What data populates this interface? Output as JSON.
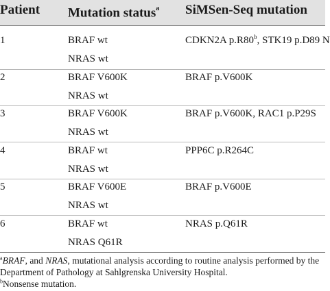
{
  "header": {
    "patient": "Patient",
    "mutation_status": "Mutation status",
    "mutation_status_note": "a",
    "simsen": "SiMSen-Seq mutation"
  },
  "rows": [
    {
      "patient": "1",
      "status1": "BRAF wt",
      "status2": "NRAS wt",
      "simsen_a": "CDKN2A p.R80",
      "simsen_sup": "b",
      "simsen_b": ", STK19 p.D89 N"
    },
    {
      "patient": "2",
      "status1": "BRAF V600K",
      "status2": "NRAS wt",
      "simsen": "BRAF p.V600K"
    },
    {
      "patient": "3",
      "status1": "BRAF V600K",
      "status2": "NRAS wt",
      "simsen": "BRAF p.V600K, RAC1 p.P29S"
    },
    {
      "patient": "4",
      "status1": "BRAF wt",
      "status2": "NRAS wt",
      "simsen": "PPP6C p.R264C"
    },
    {
      "patient": "5",
      "status1": "BRAF V600E",
      "status2": "NRAS wt",
      "simsen": "BRAF p.V600E"
    },
    {
      "patient": "6",
      "status1": "BRAF wt",
      "status2": "NRAS Q61R",
      "simsen": "NRAS p.Q61R"
    }
  ],
  "footnotes": {
    "a_marker": "a",
    "a_italic1": "BRAF",
    "a_text1": ", and ",
    "a_italic2": "NRAS",
    "a_text2": ", mutational analysis according to routine analysis performed by the",
    "a_line2": "Department of Pathology at Sahlgrenska University Hospital.",
    "b_marker": "b",
    "b_text": "Nonsense mutation."
  }
}
